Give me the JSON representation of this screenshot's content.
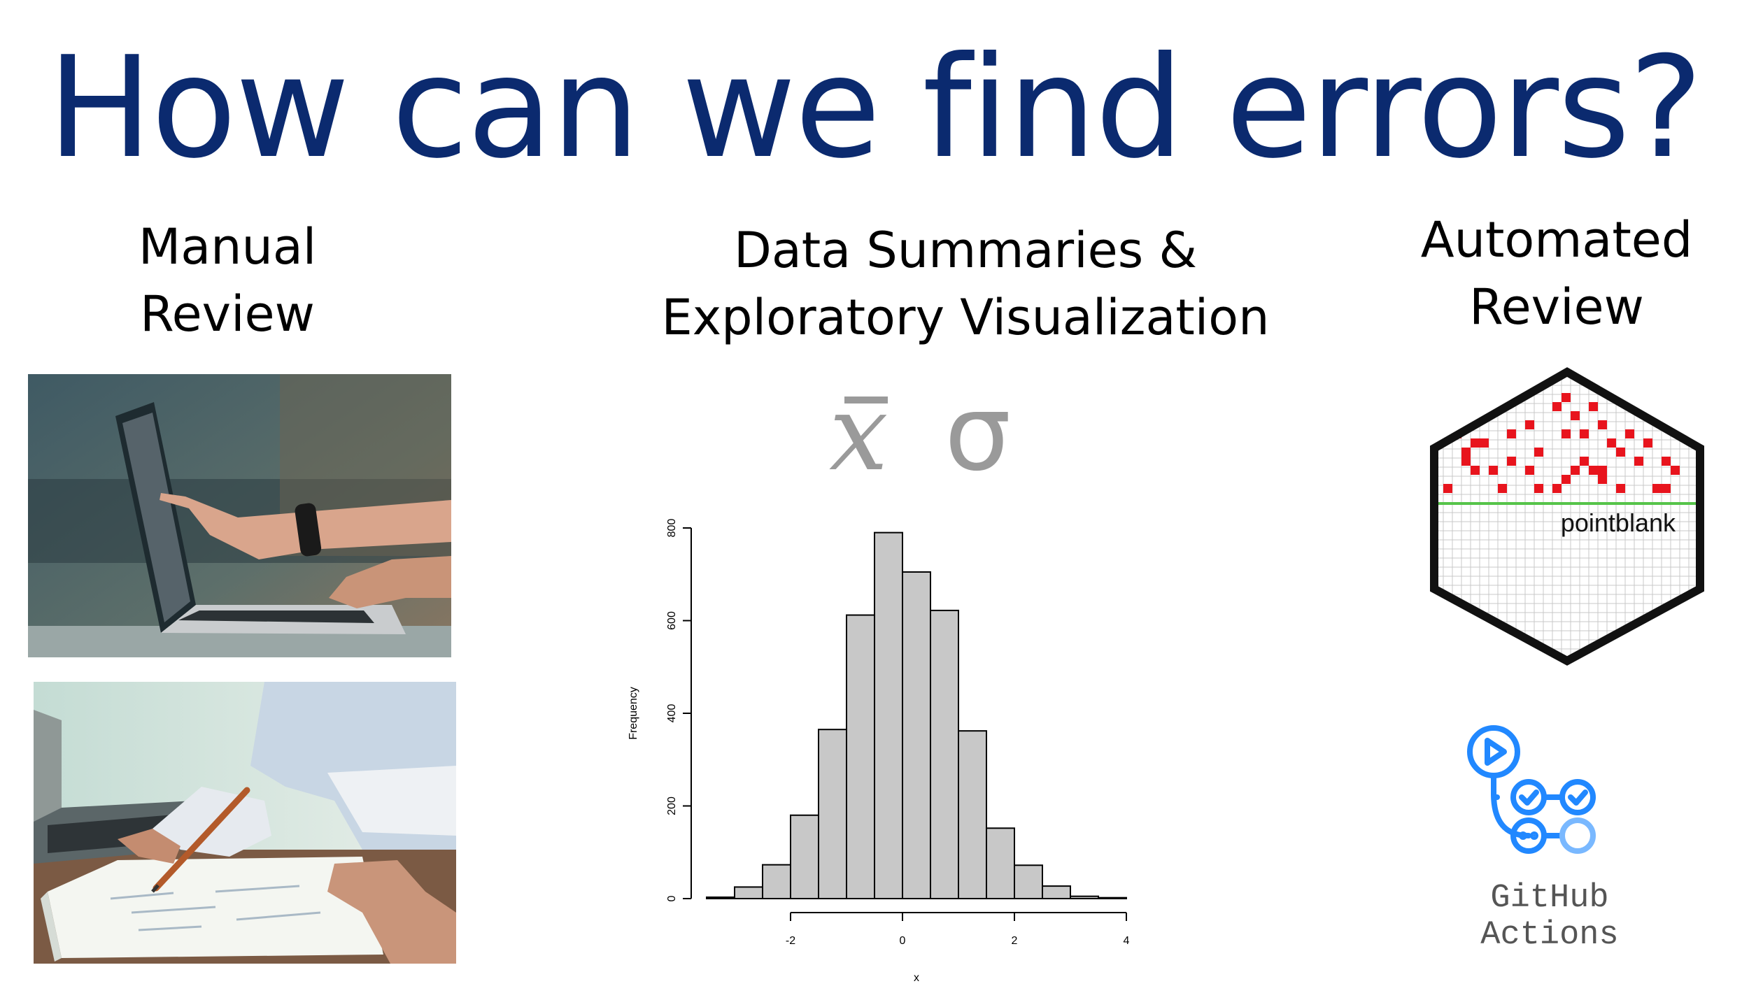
{
  "title": "How can we find errors?",
  "columns": {
    "manual": {
      "lines": [
        "Manual",
        "Review"
      ]
    },
    "summaries": {
      "lines": [
        "Data Summaries &",
        "Exploratory Visualization"
      ],
      "symbols": [
        "x",
        "σ"
      ]
    },
    "automated": {
      "lines": [
        "Automated",
        "Review"
      ]
    }
  },
  "pointblank": {
    "label": "pointblank"
  },
  "github": {
    "label": "GitHub Actions",
    "color": "#2188ff"
  },
  "chart_data": {
    "type": "bar",
    "title": "",
    "xlabel": "x",
    "ylabel": "Frequency",
    "bin_edges": [
      -3.5,
      -3.0,
      -2.5,
      -2.0,
      -1.5,
      -1.0,
      -0.5,
      0.0,
      0.5,
      1.0,
      1.5,
      2.0,
      2.5,
      3.0,
      3.5,
      4.0
    ],
    "values": [
      3,
      25,
      73,
      180,
      365,
      612,
      790,
      705,
      622,
      362,
      152,
      72,
      27,
      5,
      2
    ],
    "x_ticks": [
      -2,
      0,
      2,
      4
    ],
    "y_ticks": [
      0,
      200,
      400,
      600,
      800
    ],
    "xlim": [
      -3.5,
      4.0
    ],
    "ylim": [
      0,
      800
    ],
    "bar_color": "#c8c8c8"
  }
}
